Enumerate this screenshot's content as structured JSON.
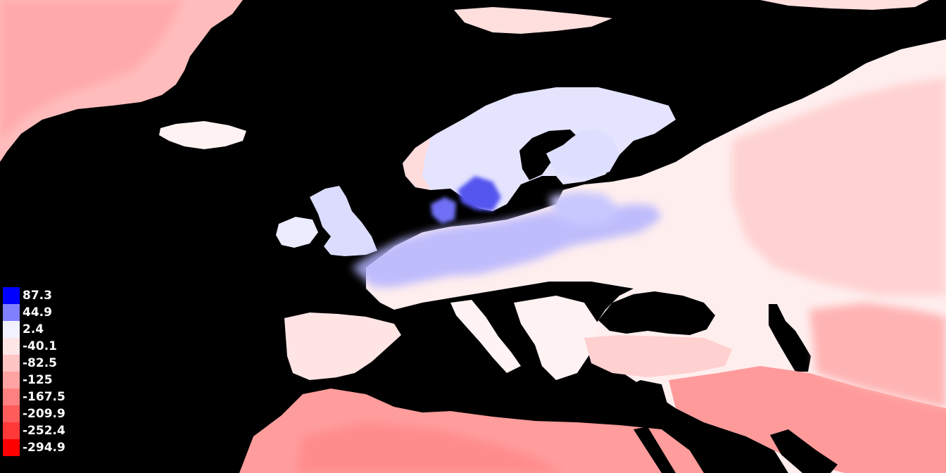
{
  "map": {
    "background_color": "#000000",
    "scale": "diverging blue-white-red"
  },
  "legend": {
    "items": [
      {
        "label": "87.3",
        "color": "#0000ff"
      },
      {
        "label": "44.9",
        "color": "#8080ff"
      },
      {
        "label": "2.4",
        "color": "#f2f2ff"
      },
      {
        "label": "-40.1",
        "color": "#ffe6e6"
      },
      {
        "label": "-82.5",
        "color": "#ffc4c4"
      },
      {
        "label": "-125",
        "color": "#ffa3a3"
      },
      {
        "label": "-167.5",
        "color": "#ff8080"
      },
      {
        "label": "-209.9",
        "color": "#ff5c5c"
      },
      {
        "label": "-252.4",
        "color": "#ff3838"
      },
      {
        "label": "-294.9",
        "color": "#ff0000"
      }
    ]
  }
}
